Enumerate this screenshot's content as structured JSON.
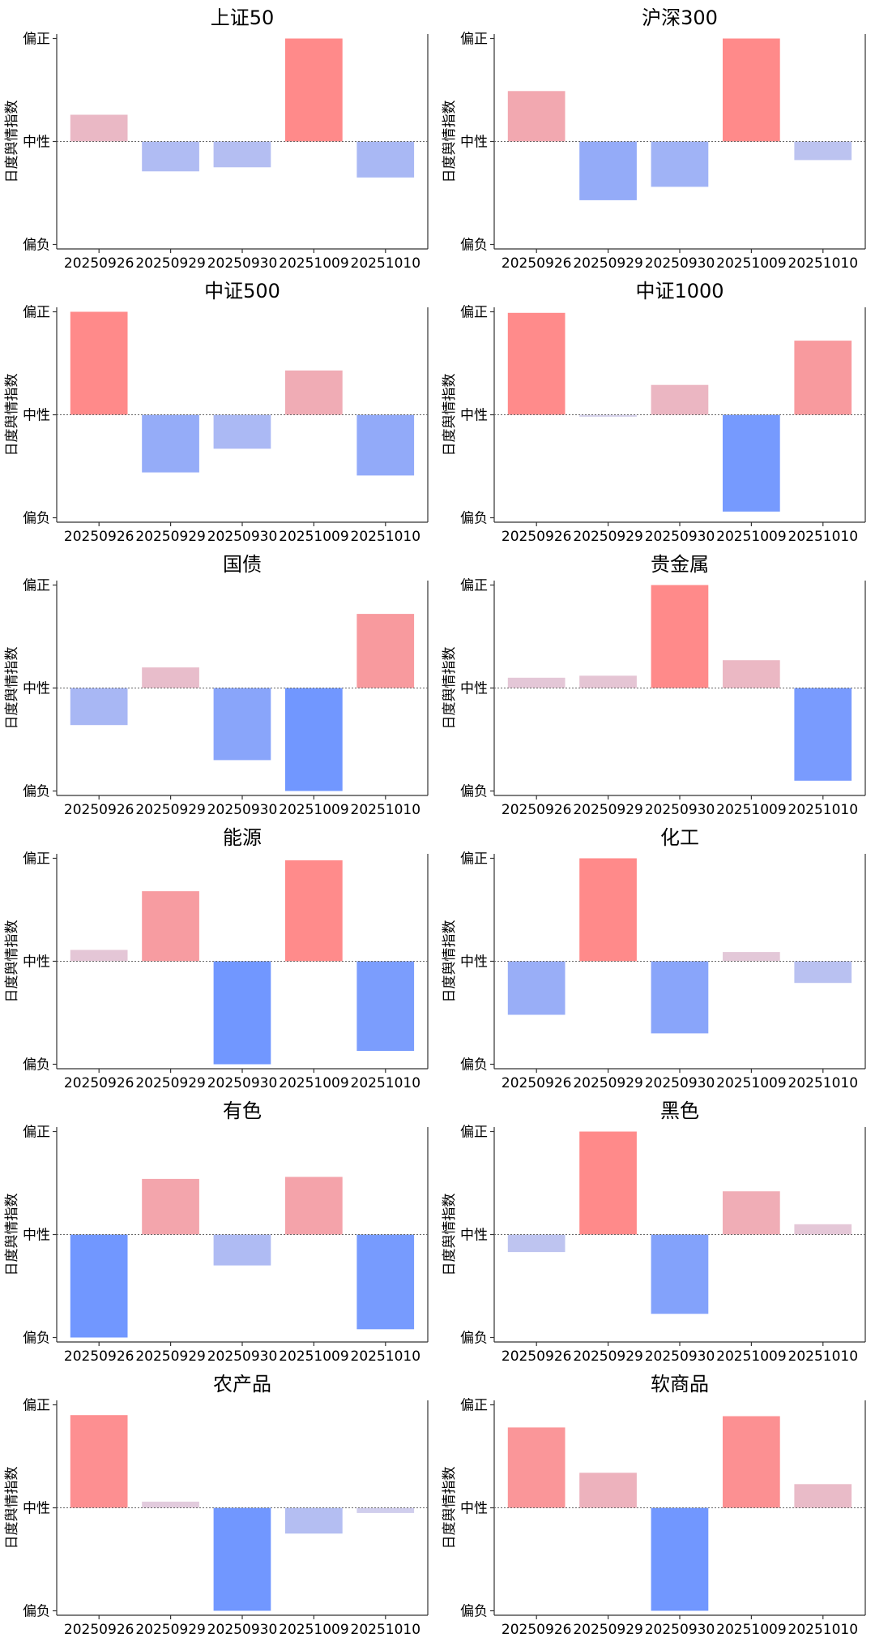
{
  "y_axis_label": "日度舆情指数",
  "y_tick_labels": {
    "top": "偏正",
    "middle": "中性",
    "bottom": "偏负"
  },
  "colors": {
    "positive": "#ff8a8a",
    "negative": "#7197ff",
    "neutral": "#ddd6ea"
  },
  "chart_data": [
    {
      "type": "bar",
      "title": "上证50",
      "categories": [
        "20250926",
        "20250929",
        "20250930",
        "20251009",
        "20251010"
      ],
      "values": [
        0.26,
        -0.29,
        -0.25,
        1.0,
        -0.35
      ],
      "ylim": [
        -1,
        1
      ],
      "ylabel": "日度舆情指数"
    },
    {
      "type": "bar",
      "title": "沪深300",
      "categories": [
        "20250926",
        "20250929",
        "20250930",
        "20251009",
        "20251010"
      ],
      "values": [
        0.49,
        -0.57,
        -0.44,
        1.0,
        -0.18
      ],
      "ylim": [
        -1,
        1
      ],
      "ylabel": "日度舆情指数"
    },
    {
      "type": "bar",
      "title": "中证500",
      "categories": [
        "20250926",
        "20250929",
        "20250930",
        "20251009",
        "20251010"
      ],
      "values": [
        1.0,
        -0.56,
        -0.33,
        0.43,
        -0.59
      ],
      "ylim": [
        -1,
        1
      ],
      "ylabel": "日度舆情指数"
    },
    {
      "type": "bar",
      "title": "中证1000",
      "categories": [
        "20250926",
        "20250929",
        "20250930",
        "20251009",
        "20251010"
      ],
      "values": [
        0.99,
        -0.02,
        0.29,
        -0.94,
        0.72
      ],
      "ylim": [
        -1,
        1
      ],
      "ylabel": "日度舆情指数"
    },
    {
      "type": "bar",
      "title": "国债",
      "categories": [
        "20250926",
        "20250929",
        "20250930",
        "20251009",
        "20251010"
      ],
      "values": [
        -0.36,
        0.2,
        -0.7,
        -1.0,
        0.72
      ],
      "ylim": [
        -1,
        1
      ],
      "ylabel": "日度舆情指数"
    },
    {
      "type": "bar",
      "title": "贵金属",
      "categories": [
        "20250926",
        "20250929",
        "20250930",
        "20251009",
        "20251010"
      ],
      "values": [
        0.1,
        0.12,
        1.0,
        0.27,
        -0.9
      ],
      "ylim": [
        -1,
        1
      ],
      "ylabel": "日度舆情指数"
    },
    {
      "type": "bar",
      "title": "能源",
      "categories": [
        "20250926",
        "20250929",
        "20250930",
        "20251009",
        "20251010"
      ],
      "values": [
        0.11,
        0.68,
        -1.0,
        0.98,
        -0.87
      ],
      "ylim": [
        -1,
        1
      ],
      "ylabel": "日度舆情指数"
    },
    {
      "type": "bar",
      "title": "化工",
      "categories": [
        "20250926",
        "20250929",
        "20250930",
        "20251009",
        "20251010"
      ],
      "values": [
        -0.52,
        1.0,
        -0.7,
        0.09,
        -0.21
      ],
      "ylim": [
        -1,
        1
      ],
      "ylabel": "日度舆情指数"
    },
    {
      "type": "bar",
      "title": "有色",
      "categories": [
        "20250926",
        "20250929",
        "20250930",
        "20251009",
        "20251010"
      ],
      "values": [
        -1.0,
        0.54,
        -0.3,
        0.56,
        -0.92
      ],
      "ylim": [
        -1,
        1
      ],
      "ylabel": "日度舆情指数"
    },
    {
      "type": "bar",
      "title": "黑色",
      "categories": [
        "20250926",
        "20250929",
        "20250930",
        "20251009",
        "20251010"
      ],
      "values": [
        -0.17,
        1.0,
        -0.77,
        0.42,
        0.1
      ],
      "ylim": [
        -1,
        1
      ],
      "ylabel": "日度舆情指数"
    },
    {
      "type": "bar",
      "title": "农产品",
      "categories": [
        "20250926",
        "20250929",
        "20250930",
        "20251009",
        "20251010"
      ],
      "values": [
        0.9,
        0.06,
        -1.0,
        -0.25,
        -0.05
      ],
      "ylim": [
        -1,
        1
      ],
      "ylabel": "日度舆情指数"
    },
    {
      "type": "bar",
      "title": "软商品",
      "categories": [
        "20250926",
        "20250929",
        "20250930",
        "20251009",
        "20251010"
      ],
      "values": [
        0.78,
        0.34,
        -1.0,
        0.89,
        0.23
      ],
      "ylim": [
        -1,
        1
      ],
      "ylabel": "日度舆情指数"
    }
  ]
}
